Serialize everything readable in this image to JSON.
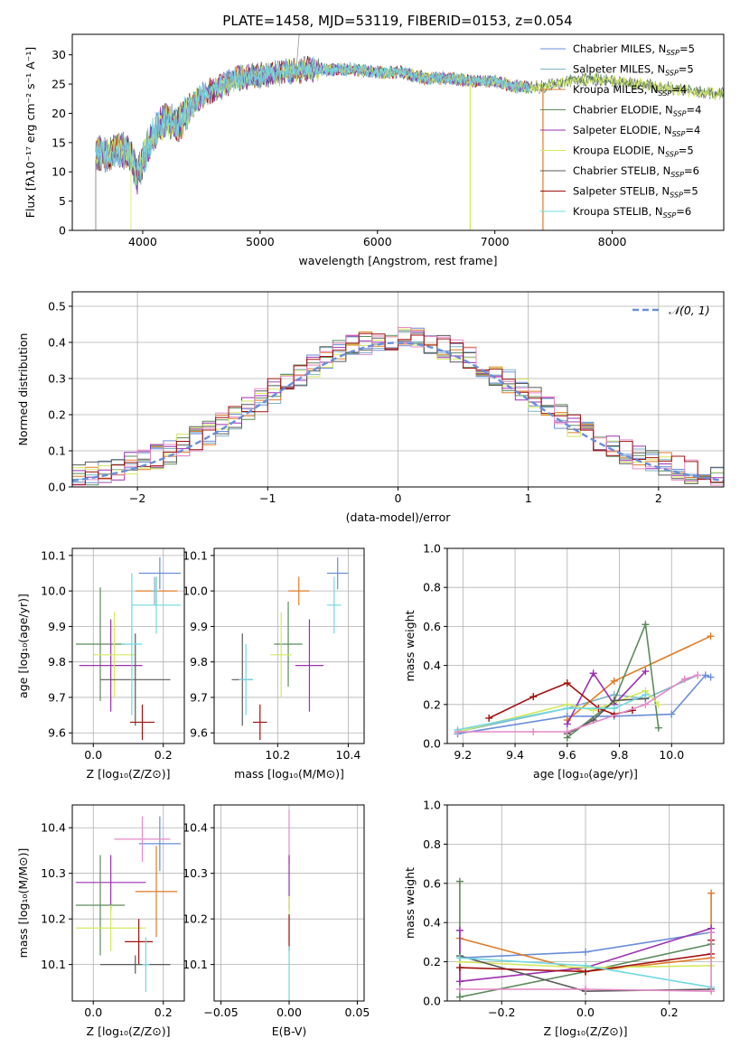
{
  "figure_title": "PLATE=1458, MJD=53119, FIBERID=0153, z=0.054",
  "series_colors": {
    "chabrier_miles": "#6a8ed8",
    "salpeter_miles": "#7fb3c8",
    "kroupa_miles": "#e07b28",
    "chabrier_elodie": "#5c8a5c",
    "salpeter_elodie": "#9b30b0",
    "kroupa_elodie": "#d4e860",
    "chabrier_stelib": "#595959",
    "salpeter_stelib": "#a01010",
    "kroupa_stelib": "#72d8e0"
  },
  "legend": [
    {
      "key": "chabrier_miles",
      "label": "Chabrier MILES, N",
      "sub": "SSP",
      "suffix": "=5"
    },
    {
      "key": "salpeter_miles",
      "label": "Salpeter MILES, N",
      "sub": "SSP",
      "suffix": "=5"
    },
    {
      "key": "kroupa_miles",
      "label": "Kroupa MILES, N",
      "sub": "SSP",
      "suffix": "=4"
    },
    {
      "key": "chabrier_elodie",
      "label": "Chabrier ELODIE, N",
      "sub": "SSP",
      "suffix": "=4"
    },
    {
      "key": "salpeter_elodie",
      "label": "Salpeter ELODIE, N",
      "sub": "SSP",
      "suffix": "=4"
    },
    {
      "key": "kroupa_elodie",
      "label": "Kroupa ELODIE, N",
      "sub": "SSP",
      "suffix": "=5"
    },
    {
      "key": "chabrier_stelib",
      "label": "Chabrier STELIB, N",
      "sub": "SSP",
      "suffix": "=6"
    },
    {
      "key": "salpeter_stelib",
      "label": "Salpeter STELIB, N",
      "sub": "SSP",
      "suffix": "=5"
    },
    {
      "key": "kroupa_stelib",
      "label": "Kroupa STELIB, N",
      "sub": "SSP",
      "suffix": "=6"
    }
  ],
  "chart_data": [
    {
      "id": "spectrum",
      "type": "line",
      "xlabel": "wavelength [Angstrom, rest frame]",
      "ylabel": "Flux [fλ10⁻¹⁷ erg cm⁻² s⁻¹ A⁻¹]",
      "xlim": [
        3400,
        8950
      ],
      "ylim": [
        0,
        33.5
      ],
      "xticks": [
        4000,
        5000,
        6000,
        7000,
        8000
      ],
      "yticks": [
        0,
        5,
        10,
        15,
        20,
        25,
        30
      ],
      "grid": false,
      "legend_position": "top-right",
      "continuum": {
        "x": [
          3600,
          3700,
          3800,
          3900,
          3950,
          4000,
          4100,
          4200,
          4300,
          4400,
          4500,
          4600,
          4700,
          4800,
          5000,
          5200,
          5400,
          5600,
          5800,
          6000,
          6200,
          6400,
          6600,
          6800,
          7000,
          7200,
          7400,
          7600,
          7800,
          8000,
          8200,
          8400,
          8600,
          8800,
          8950
        ],
        "y": [
          13,
          13,
          14,
          13,
          9,
          12,
          17,
          19,
          18,
          21,
          23,
          24,
          25,
          26,
          26.5,
          27,
          27.5,
          27.5,
          27.5,
          27,
          27,
          26,
          26,
          25.5,
          25.5,
          24.5,
          24.5,
          25.5,
          25.8,
          25.5,
          25,
          24.5,
          24,
          23.5,
          23.2
        ]
      },
      "artifacts": [
        {
          "x": 5310,
          "y": 33.5
        },
        {
          "x": 6790,
          "y": 0
        },
        {
          "x": 7410,
          "y": 0
        },
        {
          "x": 3600,
          "y": 0
        },
        {
          "x": 3900,
          "y": 0
        }
      ]
    },
    {
      "id": "residuals",
      "type": "bar",
      "xlabel": "(data-model)/error",
      "ylabel": "Normed distribution",
      "xlim": [
        -2.5,
        2.5
      ],
      "ylim": [
        0,
        0.54
      ],
      "xticks": [
        -2,
        -1,
        0,
        1,
        2
      ],
      "yticks": [
        0.0,
        0.1,
        0.2,
        0.3,
        0.4,
        0.5
      ],
      "grid": true,
      "legend_position": "top-right",
      "legend_label": "𝒩(0, 1)",
      "bins": [
        -2.5,
        2.5,
        50
      ],
      "gaussian": {
        "mean": 0,
        "sigma": 1
      }
    },
    {
      "id": "age_vs_Z",
      "type": "scatter",
      "xlabel": "Z [log₁₀(Z/Z⊙)]",
      "ylabel": "age  [log₁₀(age/yr)]",
      "xlim": [
        -0.06,
        0.26
      ],
      "ylim": [
        9.57,
        10.12
      ],
      "xticks": [
        0.0,
        0.2
      ],
      "yticks": [
        9.6,
        9.7,
        9.8,
        9.9,
        10.0,
        10.1
      ],
      "grid": true,
      "points": [
        {
          "key": "chabrier_miles",
          "x": 0.19,
          "y": 10.05,
          "xerr": 0.06,
          "yerr": 0.045
        },
        {
          "key": "kroupa_miles",
          "x": 0.18,
          "y": 10.0,
          "xerr": 0.06,
          "yerr": 0.04
        },
        {
          "key": "salpeter_miles",
          "x": 0.175,
          "y": 10.0,
          "xerr": 0.01,
          "yerr": 0.04
        },
        {
          "key": "kroupa_stelib",
          "x": 0.18,
          "y": 9.96,
          "xerr": 0.07,
          "yerr": 0.08
        },
        {
          "key": "chabrier_elodie",
          "x": 0.02,
          "y": 9.85,
          "xerr": 0.07,
          "yerr": 0.16
        },
        {
          "key": "salpeter_elodie",
          "x": 0.05,
          "y": 9.79,
          "xerr": 0.09,
          "yerr": 0.13
        },
        {
          "key": "kroupa_elodie",
          "x": 0.06,
          "y": 9.82,
          "xerr": 0.06,
          "yerr": 0.12
        },
        {
          "key": "chabrier_stelib",
          "x": 0.12,
          "y": 9.75,
          "xerr": 0.1,
          "yerr": 0.13
        },
        {
          "key": "salpeter_stelib",
          "x": 0.14,
          "y": 9.63,
          "xerr": 0.035,
          "yerr": 0.05
        },
        {
          "key": "kroupa_stelib",
          "x": 0.11,
          "y": 9.85,
          "xerr": 0.03,
          "yerr": 0.2
        }
      ]
    },
    {
      "id": "age_vs_mass",
      "type": "scatter",
      "xlabel": "mass [log₁₀(M/M⊙)]",
      "ylabel": "",
      "xlim": [
        10.02,
        10.445
      ],
      "ylim": [
        9.57,
        10.12
      ],
      "xticks": [
        10.2,
        10.4
      ],
      "yticks": [
        9.6,
        9.7,
        9.8,
        9.9,
        10.0,
        10.1
      ],
      "grid": true,
      "points": [
        {
          "key": "chabrier_miles",
          "x": 10.37,
          "y": 10.05,
          "xerr": 0.03,
          "yerr": 0.045
        },
        {
          "key": "kroupa_miles",
          "x": 10.26,
          "y": 10.0,
          "xerr": 0.03,
          "yerr": 0.04
        },
        {
          "key": "kroupa_stelib",
          "x": 10.36,
          "y": 9.96,
          "xerr": 0.02,
          "yerr": 0.08
        },
        {
          "key": "chabrier_elodie",
          "x": 10.23,
          "y": 9.85,
          "xerr": 0.04,
          "yerr": 0.12
        },
        {
          "key": "salpeter_elodie",
          "x": 10.29,
          "y": 9.79,
          "xerr": 0.04,
          "yerr": 0.13
        },
        {
          "key": "kroupa_elodie",
          "x": 10.21,
          "y": 9.82,
          "xerr": 0.03,
          "yerr": 0.12
        },
        {
          "key": "chabrier_stelib",
          "x": 10.1,
          "y": 9.75,
          "xerr": 0.03,
          "yerr": 0.13
        },
        {
          "key": "salpeter_stelib",
          "x": 10.15,
          "y": 9.63,
          "xerr": 0.02,
          "yerr": 0.05
        },
        {
          "key": "kroupa_stelib",
          "x": 10.11,
          "y": 9.75,
          "xerr": 0.02,
          "yerr": 0.1
        }
      ]
    },
    {
      "id": "mass_weight_vs_age",
      "type": "line",
      "xlabel": "age  [log₁₀(age/yr)]",
      "ylabel": "mass weight",
      "xlim": [
        9.14,
        10.2
      ],
      "ylim": [
        0,
        1.0
      ],
      "xticks": [
        9.2,
        9.4,
        9.6,
        9.8,
        10.0
      ],
      "yticks": [
        0.0,
        0.2,
        0.4,
        0.6,
        0.8,
        1.0
      ],
      "grid": true,
      "series": [
        {
          "key": "chabrier_miles",
          "x": [
            9.18,
            9.6,
            9.78,
            10.0,
            10.13,
            10.15
          ],
          "y": [
            0.05,
            0.14,
            0.14,
            0.15,
            0.35,
            0.34
          ]
        },
        {
          "key": "salpeter_miles",
          "x": [
            9.18,
            9.6,
            9.78,
            9.9,
            10.1
          ],
          "y": [
            0.06,
            0.18,
            0.25,
            0.23,
            0.35
          ]
        },
        {
          "key": "kroupa_miles",
          "x": [
            9.6,
            9.78,
            10.15
          ],
          "y": [
            0.12,
            0.32,
            0.55
          ]
        },
        {
          "key": "chabrier_elodie",
          "x": [
            9.6,
            9.78,
            9.9,
            9.95
          ],
          "y": [
            0.03,
            0.22,
            0.61,
            0.08
          ]
        },
        {
          "key": "salpeter_elodie",
          "x": [
            9.6,
            9.7,
            9.78,
            9.9
          ],
          "y": [
            0.1,
            0.36,
            0.2,
            0.37
          ]
        },
        {
          "key": "kroupa_elodie",
          "x": [
            9.18,
            9.6,
            9.7,
            9.9,
            9.95
          ],
          "y": [
            0.06,
            0.2,
            0.17,
            0.27,
            0.2
          ]
        },
        {
          "key": "chabrier_stelib",
          "x": [
            9.6,
            9.7,
            9.78,
            9.9
          ],
          "y": [
            0.05,
            0.12,
            0.22,
            0.23
          ]
        },
        {
          "key": "salpeter_stelib",
          "x": [
            9.3,
            9.47,
            9.6,
            9.72,
            9.78,
            9.85
          ],
          "y": [
            0.13,
            0.24,
            0.31,
            0.18,
            0.15,
            0.17
          ]
        },
        {
          "key": "kroupa_stelib",
          "x": [
            9.18,
            9.6,
            9.78,
            9.9
          ],
          "y": [
            0.07,
            0.18,
            0.18,
            0.25
          ]
        },
        {
          "key": "pink",
          "x": [
            9.18,
            9.47,
            9.6,
            9.9,
            10.05,
            10.1
          ],
          "y": [
            0.06,
            0.06,
            0.06,
            0.2,
            0.33,
            0.35
          ]
        }
      ]
    },
    {
      "id": "mass_vs_Z",
      "type": "scatter",
      "xlabel": "Z [log₁₀(Z/Z⊙)]",
      "ylabel": "mass [log₁₀(M/M⊙)]",
      "xlim": [
        -0.06,
        0.26
      ],
      "ylim": [
        10.02,
        10.45
      ],
      "xticks": [
        0.0,
        0.2
      ],
      "yticks": [
        10.1,
        10.2,
        10.3,
        10.4
      ],
      "grid": true,
      "points": [
        {
          "key": "chabrier_miles",
          "x": 0.19,
          "y": 10.365,
          "xerr": 0.06,
          "yerr": 0.06
        },
        {
          "key": "pink",
          "x": 0.14,
          "y": 10.375,
          "xerr": 0.08,
          "yerr": 0.05
        },
        {
          "key": "kroupa_miles",
          "x": 0.18,
          "y": 10.26,
          "xerr": 0.06,
          "yerr": 0.1
        },
        {
          "key": "salpeter_elodie",
          "x": 0.05,
          "y": 10.28,
          "xerr": 0.1,
          "yerr": 0.06
        },
        {
          "key": "chabrier_elodie",
          "x": 0.02,
          "y": 10.23,
          "xerr": 0.07,
          "yerr": 0.11
        },
        {
          "key": "kroupa_elodie",
          "x": 0.05,
          "y": 10.18,
          "xerr": 0.1,
          "yerr": 0.05
        },
        {
          "key": "salpeter_stelib",
          "x": 0.13,
          "y": 10.15,
          "xerr": 0.04,
          "yerr": 0.05
        },
        {
          "key": "chabrier_stelib",
          "x": 0.12,
          "y": 10.1,
          "xerr": 0.1,
          "yerr": 0.02
        },
        {
          "key": "kroupa_stelib",
          "x": 0.15,
          "y": 10.1,
          "xerr": 0.01,
          "yerr": 0.06
        }
      ]
    },
    {
      "id": "mass_vs_ebv",
      "type": "scatter",
      "xlabel": "E(B-V)",
      "ylabel": "",
      "xlim": [
        -0.055,
        0.055
      ],
      "ylim": [
        10.02,
        10.45
      ],
      "xticks": [
        -0.05,
        0.0,
        0.05
      ],
      "yticks": [
        10.1,
        10.2,
        10.3,
        10.4
      ],
      "grid": true,
      "points": [
        {
          "key": "pink",
          "x": 0.0,
          "y": 10.38,
          "xerr": 0,
          "yerr": 0.06
        },
        {
          "key": "salpeter_elodie",
          "x": 0.0,
          "y": 10.28,
          "xerr": 0,
          "yerr": 0.06
        },
        {
          "key": "kroupa_elodie",
          "x": 0.0,
          "y": 10.2,
          "xerr": 0,
          "yerr": 0.05
        },
        {
          "key": "salpeter_stelib",
          "x": 0.0,
          "y": 10.17,
          "xerr": 0,
          "yerr": 0.04
        },
        {
          "key": "kroupa_stelib",
          "x": 0.0,
          "y": 10.08,
          "xerr": 0,
          "yerr": 0.06
        }
      ]
    },
    {
      "id": "mass_weight_vs_Z",
      "type": "line",
      "xlabel": "Z [log₁₀(Z/Z⊙)]",
      "ylabel": "mass weight",
      "xlim": [
        -0.33,
        0.33
      ],
      "ylim": [
        0,
        1.0
      ],
      "xticks": [
        -0.2,
        0.0,
        0.2
      ],
      "yticks": [
        0.0,
        0.2,
        0.4,
        0.6,
        0.8,
        1.0
      ],
      "grid": true,
      "series": [
        {
          "key": "chabrier_miles",
          "x": [
            -0.3,
            0.0,
            0.3
          ],
          "y": [
            0.22,
            0.25,
            0.35
          ]
        },
        {
          "key": "kroupa_miles",
          "x": [
            -0.3,
            0.0,
            0.3,
            0.3
          ],
          "y": [
            0.32,
            0.15,
            0.22,
            0.55
          ]
        },
        {
          "key": "chabrier_elodie",
          "x": [
            -0.3,
            -0.3,
            0.0,
            0.3
          ],
          "y": [
            0.61,
            0.02,
            0.15,
            0.29
          ]
        },
        {
          "key": "salpeter_elodie",
          "x": [
            -0.3,
            -0.3,
            0.0,
            0.3
          ],
          "y": [
            0.36,
            0.1,
            0.17,
            0.37
          ]
        },
        {
          "key": "kroupa_elodie",
          "x": [
            -0.3,
            0.0,
            0.3
          ],
          "y": [
            0.2,
            0.17,
            0.18
          ]
        },
        {
          "key": "chabrier_stelib",
          "x": [
            -0.3,
            0.0,
            0.3
          ],
          "y": [
            0.23,
            0.05,
            0.06
          ]
        },
        {
          "key": "salpeter_stelib",
          "x": [
            -0.3,
            0.0,
            0.3,
            0.3
          ],
          "y": [
            0.17,
            0.15,
            0.24,
            0.31
          ]
        },
        {
          "key": "kroupa_stelib",
          "x": [
            -0.3,
            0.0,
            0.3
          ],
          "y": [
            0.22,
            0.18,
            0.07
          ]
        },
        {
          "key": "pink",
          "x": [
            -0.3,
            0.0,
            0.3,
            0.3
          ],
          "y": [
            0.06,
            0.06,
            0.05,
            0.35
          ]
        }
      ]
    }
  ]
}
